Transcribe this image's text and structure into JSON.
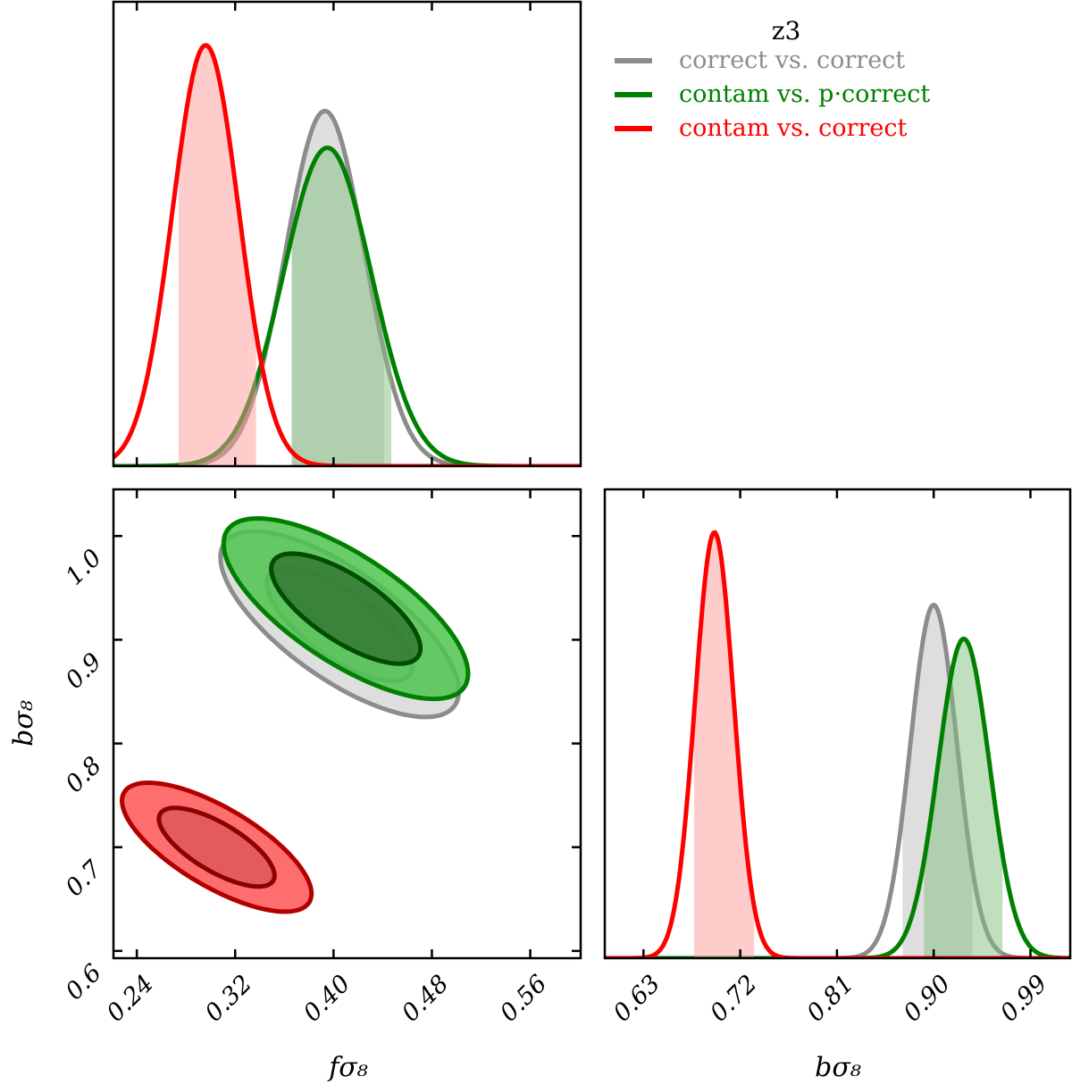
{
  "chart_data": {
    "type": "corner",
    "legend": {
      "title": "z3",
      "placement": "top-right",
      "entries": [
        {
          "label": "correct vs. correct",
          "color": "#8c8c8c"
        },
        {
          "label": "contam vs. p·correct",
          "color": "#008000"
        },
        {
          "label": "contam vs. correct",
          "color": "#ff0000"
        }
      ]
    },
    "params": [
      {
        "label": "fσ₈",
        "lim": [
          0.221,
          0.601
        ],
        "ticks": [
          "0.24",
          "0.32",
          "0.40",
          "0.48",
          "0.56"
        ]
      },
      {
        "label": "bσ₈",
        "lim_y": [
          0.593,
          1.045
        ],
        "ticks_y": [
          "0.6",
          "0.7",
          "0.8",
          "0.9",
          "1.0"
        ],
        "lim_x": [
          0.594,
          1.027
        ],
        "ticks_x": [
          "0.63",
          "0.72",
          "0.81",
          "0.90",
          "0.99"
        ]
      }
    ],
    "marginal_ylim": {
      "f": [
        0,
        16.3
      ],
      "b": [
        0,
        24.4
      ]
    },
    "series": [
      {
        "name": "correct vs. correct",
        "line": "#8c8c8c",
        "fill1d": "#bdbdbd",
        "fill_outer": "#dedede",
        "fill_inner": "#b8b8b8",
        "line_inner": "#8c8c8c",
        "f_mean": 0.393,
        "f_sigma": 0.032,
        "f_interval": [
          0.366,
          0.441
        ],
        "b_mean": 0.9,
        "b_sigma": 0.0217,
        "b_interval": [
          0.871,
          0.936
        ],
        "joint": {
          "f_mean": 0.405,
          "b_mean": 0.915,
          "f_sigma": 0.039,
          "b_sigma": 0.036,
          "rho": -0.72
        }
      },
      {
        "name": "contam vs. p·correct",
        "line": "#008000",
        "fill1d": "#7fbf7f",
        "fill_outer": "#4fc44f",
        "fill_inner": "#2e6e2e",
        "line_inner": "#004d00",
        "f_mean": 0.395,
        "f_sigma": 0.0357,
        "f_interval": [
          0.366,
          0.447
        ],
        "b_mean": 0.928,
        "b_sigma": 0.024,
        "b_interval": [
          0.891,
          0.964
        ],
        "joint": {
          "f_mean": 0.41,
          "b_mean": 0.93,
          "f_sigma": 0.04,
          "b_sigma": 0.035,
          "rho": -0.72
        }
      },
      {
        "name": "contam vs. correct",
        "line": "#ff0000",
        "fill1d": "#ff9999",
        "fill_outer": "#ff5555",
        "fill_inner": "#d95555",
        "line_inner": "#8b0000",
        "line_outer": "#b20000",
        "f_mean": 0.296,
        "f_sigma": 0.027,
        "f_interval": [
          0.274,
          0.337
        ],
        "b_mean": 0.696,
        "b_sigma": 0.018,
        "b_interval": [
          0.677,
          0.733
        ],
        "joint": {
          "f_mean": 0.305,
          "b_mean": 0.7,
          "f_sigma": 0.031,
          "b_sigma": 0.025,
          "rho": -0.72
        }
      }
    ],
    "contour_levels": [
      "68%",
      "95%"
    ],
    "grid": false
  }
}
